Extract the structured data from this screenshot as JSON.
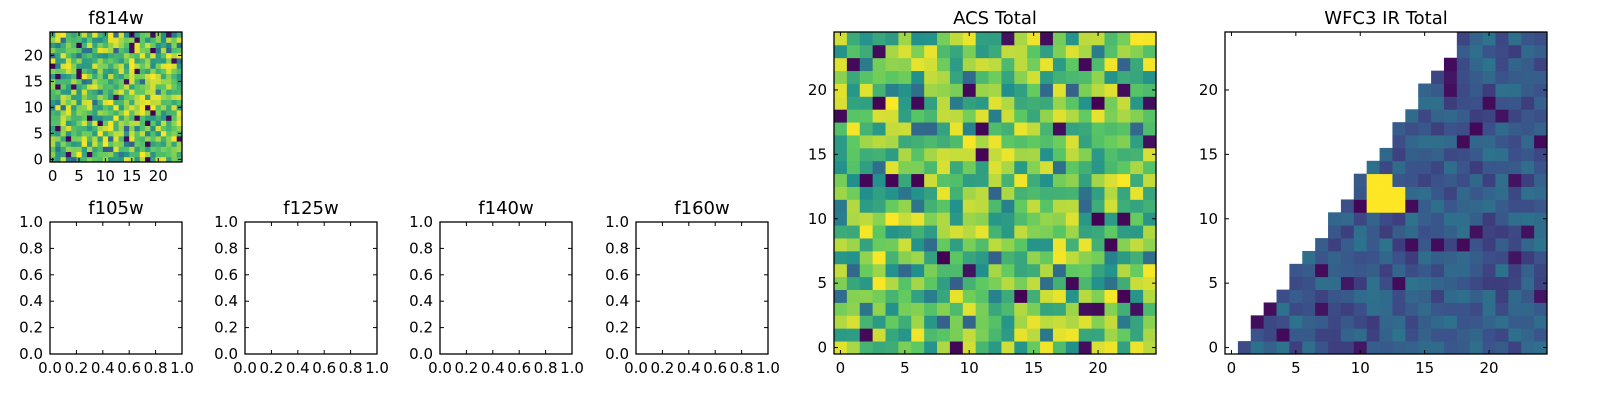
{
  "chart_data": [
    {
      "type": "heatmap",
      "title": "f814w",
      "xticks": [
        0,
        5,
        10,
        15,
        20
      ],
      "yticks": [
        0,
        5,
        10,
        15,
        20
      ],
      "xlim": [
        -0.5,
        24.5
      ],
      "ylim": [
        -0.5,
        24.5
      ],
      "grid_size": 25,
      "pattern": "uniform-noise",
      "seed": 11
    },
    {
      "type": "empty",
      "title": "f105w",
      "xticks": [
        "0.0",
        "0.2",
        "0.4",
        "0.6",
        "0.8",
        "1.0"
      ],
      "yticks": [
        "0.0",
        "0.2",
        "0.4",
        "0.6",
        "0.8",
        "1.0"
      ],
      "xlim": [
        0,
        1
      ],
      "ylim": [
        0,
        1
      ]
    },
    {
      "type": "empty",
      "title": "f125w",
      "xticks": [
        "0.0",
        "0.2",
        "0.4",
        "0.6",
        "0.8",
        "1.0"
      ],
      "yticks": [
        "0.0",
        "0.2",
        "0.4",
        "0.6",
        "0.8",
        "1.0"
      ],
      "xlim": [
        0,
        1
      ],
      "ylim": [
        0,
        1
      ]
    },
    {
      "type": "empty",
      "title": "f140w",
      "xticks": [
        "0.0",
        "0.2",
        "0.4",
        "0.6",
        "0.8",
        "1.0"
      ],
      "yticks": [
        "0.0",
        "0.2",
        "0.4",
        "0.6",
        "0.8",
        "1.0"
      ],
      "xlim": [
        0,
        1
      ],
      "ylim": [
        0,
        1
      ]
    },
    {
      "type": "empty",
      "title": "f160w",
      "xticks": [
        "0.0",
        "0.2",
        "0.4",
        "0.6",
        "0.8",
        "1.0"
      ],
      "yticks": [
        "0.0",
        "0.2",
        "0.4",
        "0.6",
        "0.8",
        "1.0"
      ],
      "xlim": [
        0,
        1
      ],
      "ylim": [
        0,
        1
      ]
    },
    {
      "type": "heatmap",
      "title": "ACS Total",
      "xticks": [
        0,
        5,
        10,
        15,
        20
      ],
      "yticks": [
        0,
        5,
        10,
        15,
        20
      ],
      "xlim": [
        -0.5,
        24.5
      ],
      "ylim": [
        -0.5,
        24.5
      ],
      "grid_size": 25,
      "pattern": "uniform-noise",
      "seed": 29
    },
    {
      "type": "heatmap",
      "title": "WFC3 IR Total",
      "xticks": [
        0,
        5,
        10,
        15,
        20
      ],
      "yticks": [
        0,
        5,
        10,
        15,
        20
      ],
      "xlim": [
        -0.5,
        24.5
      ],
      "ylim": [
        -0.5,
        24.5
      ],
      "grid_size": 25,
      "pattern": "triangular-footprint",
      "seed": 7,
      "blank_region": "upper-left (no data)",
      "peak": {
        "x": [
          11,
          13
        ],
        "y": [
          11,
          13
        ],
        "level": "max"
      }
    }
  ],
  "colormap": [
    "#440154",
    "#3b528b",
    "#21908d",
    "#5dc962",
    "#fde725"
  ]
}
